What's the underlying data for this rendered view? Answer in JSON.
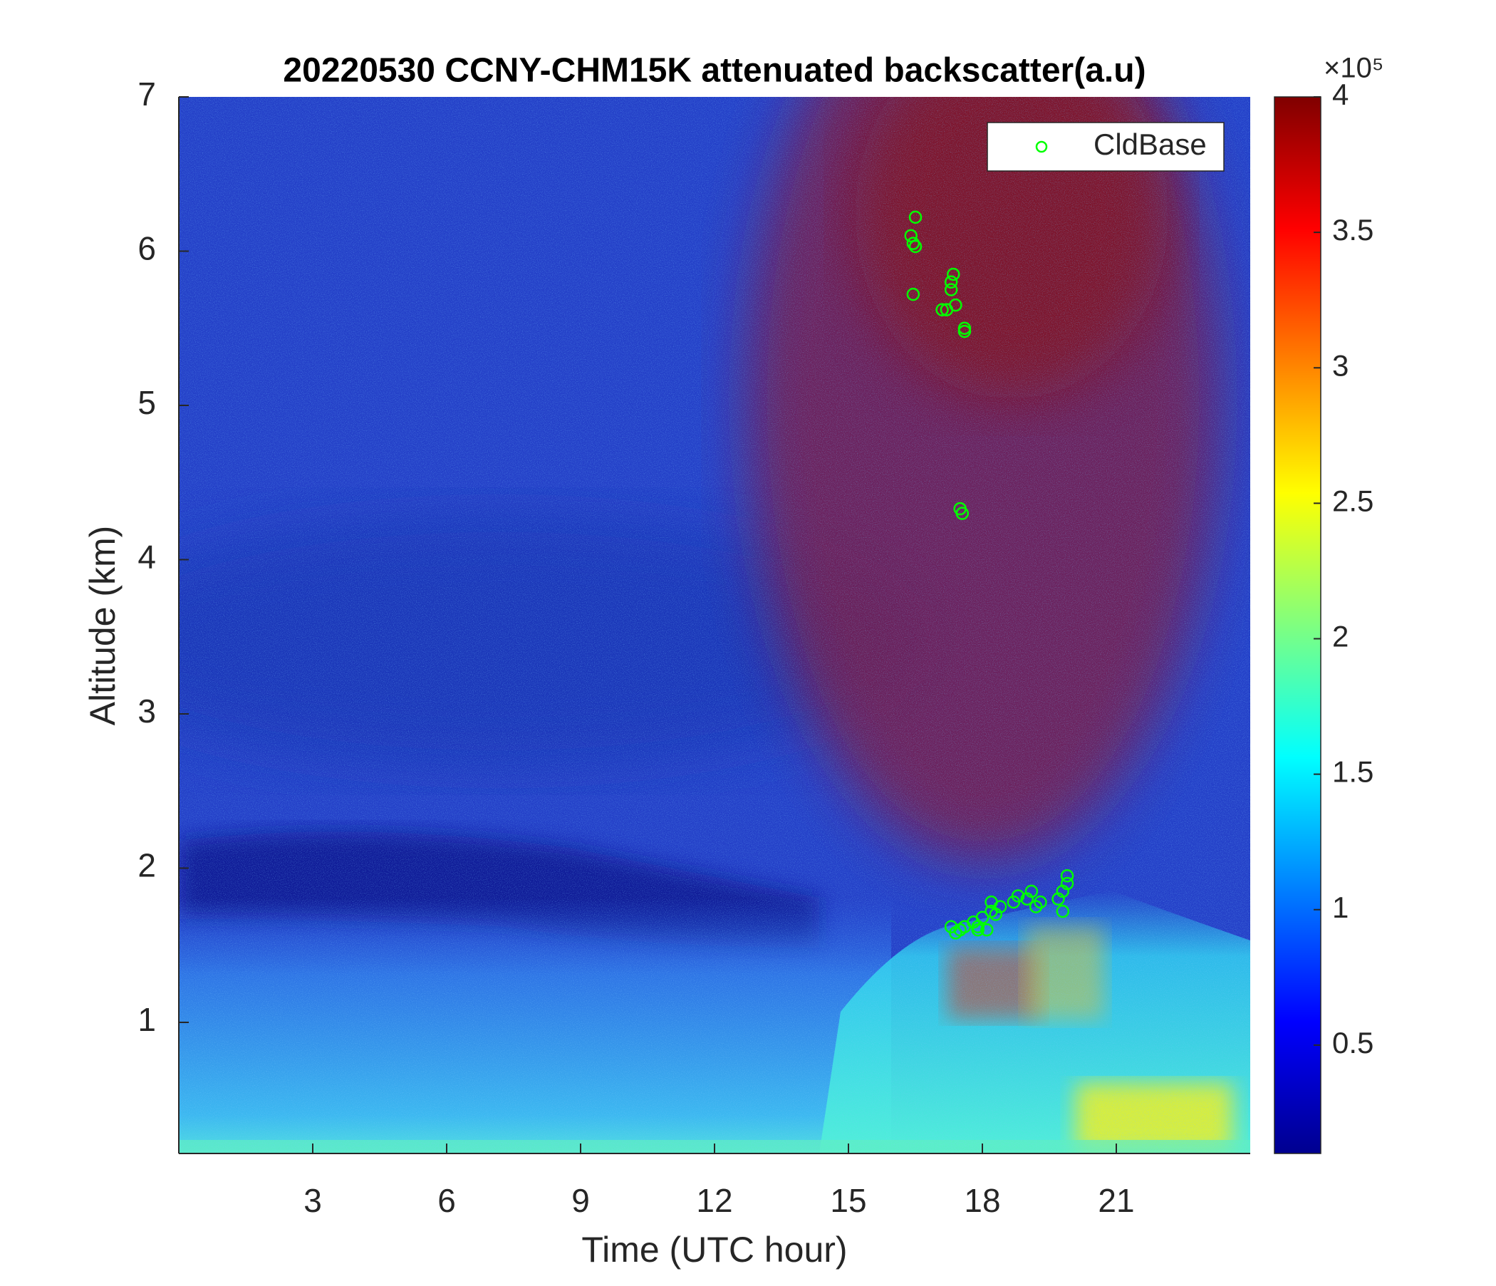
{
  "chart_data": {
    "type": "scatter",
    "title": "20220530 CCNY-CHM15K attenuated backscatter(a.u)",
    "xlabel": "Time (UTC hour)",
    "ylabel": "Altitude (km)",
    "xlim": [
      0,
      24
    ],
    "ylim": [
      0.15,
      7
    ],
    "xticks": [
      3,
      6,
      9,
      12,
      15,
      18,
      21
    ],
    "yticks": [
      1,
      2,
      3,
      4,
      5,
      6,
      7
    ],
    "legend": "upper right",
    "series": [
      {
        "name": "CldBase",
        "color": "#00ff00",
        "x": [
          16.5,
          16.4,
          16.45,
          16.5,
          16.45,
          17.2,
          17.1,
          17.3,
          17.35,
          17.3,
          17.4,
          17.6,
          17.6,
          17.5,
          17.55,
          17.3,
          17.4,
          17.5,
          17.6,
          17.8,
          17.9,
          18.0,
          18.1,
          18.2,
          18.3,
          18.2,
          18.4,
          18.7,
          18.8,
          19.0,
          19.1,
          19.2,
          19.3,
          19.7,
          19.8,
          19.9,
          19.9,
          19.8,
          17.9
        ],
        "y": [
          6.22,
          6.1,
          6.05,
          6.03,
          5.72,
          5.62,
          5.62,
          5.75,
          5.85,
          5.8,
          5.65,
          5.5,
          5.48,
          4.33,
          4.3,
          1.62,
          1.58,
          1.6,
          1.62,
          1.65,
          1.62,
          1.68,
          1.6,
          1.72,
          1.7,
          1.78,
          1.75,
          1.78,
          1.82,
          1.8,
          1.85,
          1.75,
          1.78,
          1.8,
          1.85,
          1.9,
          1.95,
          1.72,
          1.6
        ]
      }
    ],
    "colorbar": {
      "clim": [
        0.1,
        4
      ],
      "ticks": [
        0.5,
        1,
        1.5,
        2,
        2.5,
        3,
        3.5,
        4
      ],
      "scale_label": "×10⁵"
    }
  }
}
